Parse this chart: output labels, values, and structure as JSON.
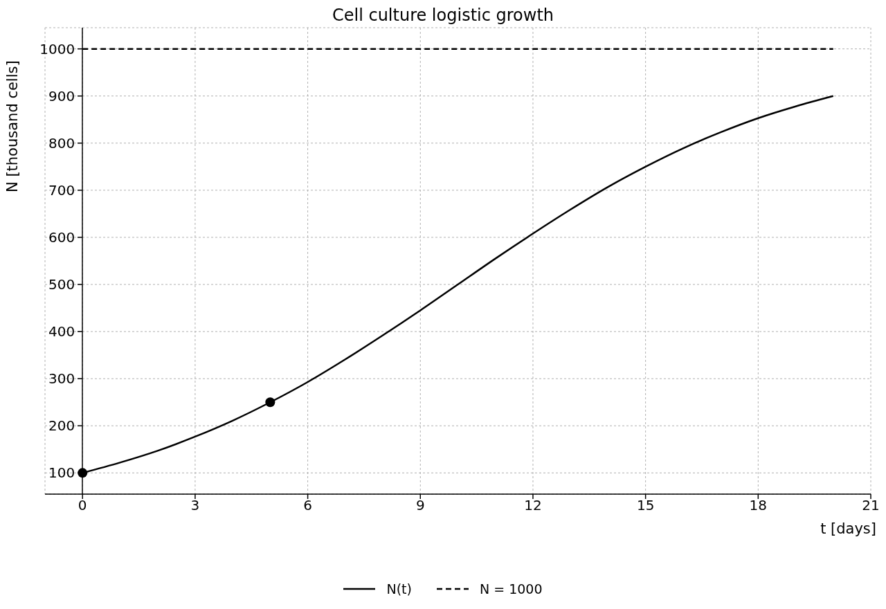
{
  "chart_data": {
    "type": "line",
    "title": "Cell culture logistic growth",
    "xlabel": "t [days]",
    "ylabel": "N [thousand cells]",
    "series": [
      {
        "name": "N(t)",
        "color": "#000000",
        "marker": "none",
        "line_style": "solid",
        "x": [
          0,
          1,
          2,
          3,
          4,
          5,
          6,
          7,
          8,
          9,
          10,
          11,
          12,
          13,
          14,
          15,
          16,
          17,
          18,
          19,
          20
        ],
        "values": [
          100,
          122,
          147,
          177,
          211,
          250,
          293,
          341,
          392,
          445,
          500,
          555,
          608,
          659,
          707,
          750,
          789,
          823,
          853,
          878,
          900
        ]
      },
      {
        "name": "N = 1000",
        "color": "#000000",
        "marker": "none",
        "line_style": "dashed",
        "x": [
          0,
          20
        ],
        "values": [
          1000,
          1000
        ]
      },
      {
        "type": "scatter",
        "color": "#000000",
        "marker": "circle",
        "x": [
          0,
          5
        ],
        "values": [
          100,
          250
        ]
      }
    ],
    "xlim": [
      -1,
      21
    ],
    "xticks": [
      0,
      3,
      6,
      9,
      12,
      15,
      18,
      21
    ],
    "ylim": [
      55,
      1045
    ],
    "yticks": [
      100,
      200,
      300,
      400,
      500,
      600,
      700,
      800,
      900,
      1000
    ],
    "grid": true,
    "legend": "bottom"
  }
}
